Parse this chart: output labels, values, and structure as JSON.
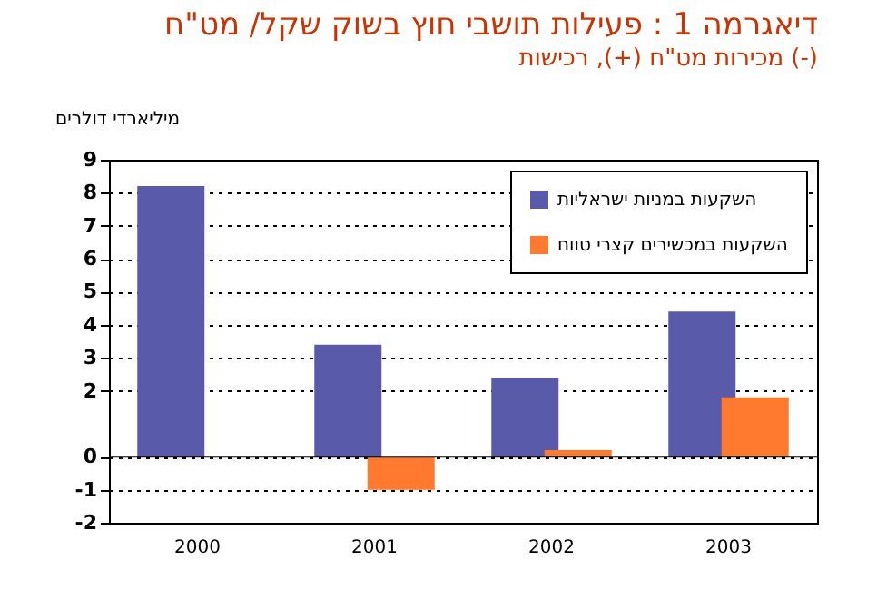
{
  "chart_data": {
    "type": "bar",
    "title": "דיאגרמה 1 :  פעילות תושבי חוץ בשוק שקל/ מט\"ח",
    "subtitle": "מכירות מט\"ח (+), רכישות (-)",
    "ylabel": "מיליארדי דולרים",
    "categories": [
      "2000",
      "2001",
      "2002",
      "2003"
    ],
    "series": [
      {
        "name": "השקעות במניות ישראליות",
        "color": "#5a5aaa",
        "values": [
          8.2,
          3.4,
          2.4,
          4.4
        ]
      },
      {
        "name": "השקעות במכשירים קצרי טווח",
        "color": "#ff7a2e",
        "values": [
          null,
          -1,
          0.2,
          1.8
        ]
      }
    ],
    "ylim": [
      -2,
      9
    ],
    "yticks": [
      -2,
      -1,
      0,
      2,
      3,
      4,
      5,
      6,
      7,
      8,
      9
    ],
    "grid": "y",
    "legend": "top right"
  }
}
